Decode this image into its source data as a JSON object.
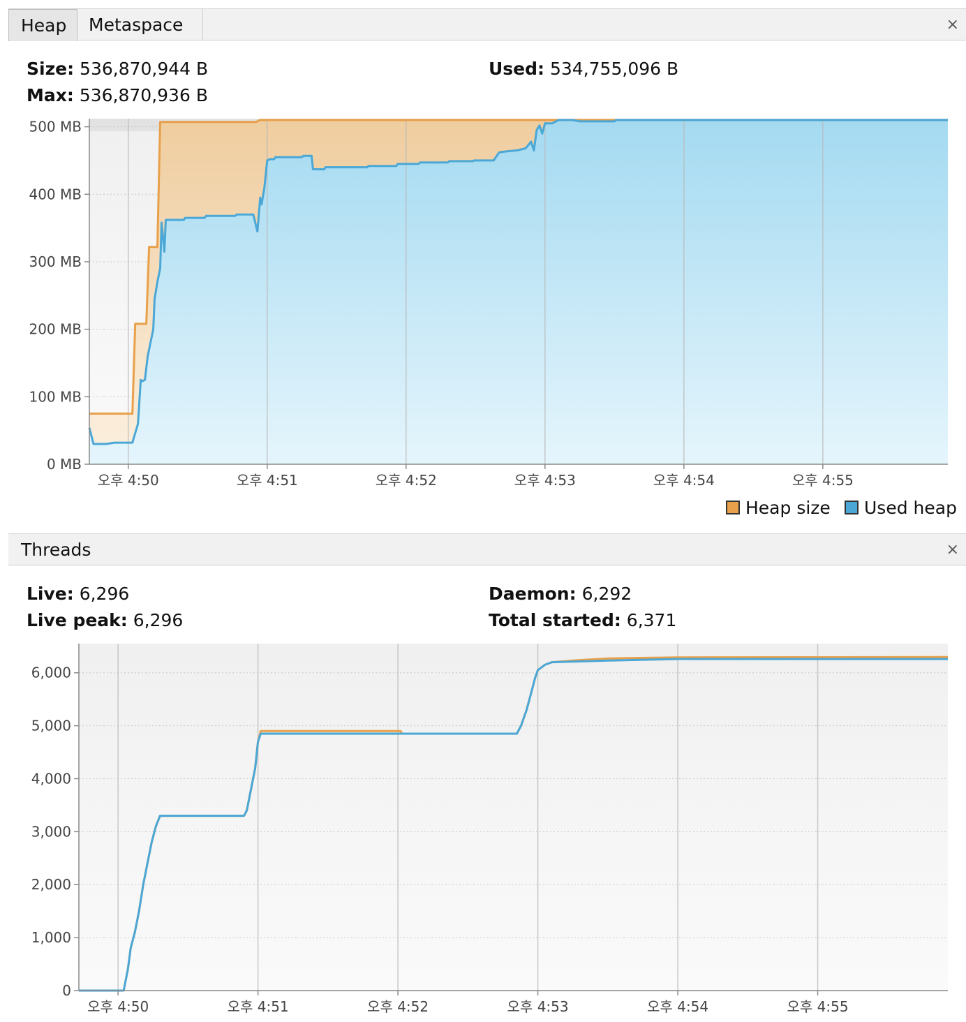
{
  "heap_panel": {
    "tabs": [
      {
        "label": "Heap"
      },
      {
        "label": "Metaspace"
      }
    ],
    "close_glyph": "×",
    "stats": {
      "size_label": "Size:",
      "size_value": "536,870,944 B",
      "max_label": "Max:",
      "max_value": "536,870,936 B",
      "used_label": "Used:",
      "used_value": "534,755,096 B"
    },
    "legend": [
      {
        "label": "Heap size",
        "color": "#e8a04a"
      },
      {
        "label": "Used heap",
        "color": "#4aa7d6"
      }
    ]
  },
  "threads_panel": {
    "title": "Threads",
    "close_glyph": "×",
    "stats": {
      "live_label": "Live:",
      "live_value": "6,296",
      "peak_label": "Live peak:",
      "peak_value": "6,296",
      "daemon_label": "Daemon:",
      "daemon_value": "6,292",
      "total_label": "Total started:",
      "total_value": "6,371"
    }
  },
  "chart_data": [
    {
      "type": "area",
      "x_unit": "minutes after 오후 4:50",
      "x_ticks": [
        {
          "x": 0,
          "label": "오후 4:50"
        },
        {
          "x": 1,
          "label": "오후 4:51"
        },
        {
          "x": 2,
          "label": "오후 4:52"
        },
        {
          "x": 3,
          "label": "오후 4:53"
        },
        {
          "x": 4,
          "label": "오후 4:54"
        },
        {
          "x": 5,
          "label": "오후 4:55"
        }
      ],
      "xlim": [
        -0.28,
        5.9
      ],
      "y_ticks": [
        {
          "y": 0,
          "label": "0 MB"
        },
        {
          "y": 100,
          "label": "100 MB"
        },
        {
          "y": 200,
          "label": "200 MB"
        },
        {
          "y": 300,
          "label": "300 MB"
        },
        {
          "y": 400,
          "label": "400 MB"
        },
        {
          "y": 500,
          "label": "500 MB"
        }
      ],
      "ylim": [
        0,
        512
      ],
      "series": [
        {
          "name": "Heap size",
          "color": "#e8a04a",
          "points": [
            [
              -0.28,
              75
            ],
            [
              0.03,
              75
            ],
            [
              0.05,
              208
            ],
            [
              0.13,
              208
            ],
            [
              0.15,
              322
            ],
            [
              0.21,
              322
            ],
            [
              0.23,
              507
            ],
            [
              0.92,
              507
            ],
            [
              0.95,
              510
            ],
            [
              5.9,
              510
            ]
          ]
        },
        {
          "name": "Used heap",
          "color": "#4aa7d6",
          "points": [
            [
              -0.28,
              54
            ],
            [
              -0.25,
              30
            ],
            [
              -0.16,
              30
            ],
            [
              -0.1,
              32
            ],
            [
              0.03,
              32
            ],
            [
              0.07,
              60
            ],
            [
              0.09,
              125
            ],
            [
              0.1,
              123
            ],
            [
              0.12,
              125
            ],
            [
              0.14,
              160
            ],
            [
              0.16,
              180
            ],
            [
              0.18,
              200
            ],
            [
              0.19,
              245
            ],
            [
              0.21,
              270
            ],
            [
              0.23,
              290
            ],
            [
              0.24,
              358
            ],
            [
              0.26,
              315
            ],
            [
              0.27,
              362
            ],
            [
              0.4,
              362
            ],
            [
              0.41,
              365
            ],
            [
              0.55,
              365
            ],
            [
              0.56,
              368
            ],
            [
              0.77,
              368
            ],
            [
              0.78,
              370
            ],
            [
              0.9,
              370
            ],
            [
              0.93,
              345
            ],
            [
              0.95,
              395
            ],
            [
              0.96,
              385
            ],
            [
              0.98,
              410
            ],
            [
              1.0,
              450
            ],
            [
              1.02,
              452
            ],
            [
              1.05,
              452
            ],
            [
              1.06,
              455
            ],
            [
              1.25,
              455
            ],
            [
              1.26,
              457
            ],
            [
              1.32,
              457
            ],
            [
              1.33,
              437
            ],
            [
              1.41,
              437
            ],
            [
              1.42,
              440
            ],
            [
              1.72,
              440
            ],
            [
              1.73,
              442
            ],
            [
              1.93,
              442
            ],
            [
              1.94,
              445
            ],
            [
              2.09,
              445
            ],
            [
              2.1,
              447
            ],
            [
              2.3,
              447
            ],
            [
              2.31,
              449
            ],
            [
              2.48,
              449
            ],
            [
              2.49,
              450
            ],
            [
              2.63,
              450
            ],
            [
              2.67,
              462
            ],
            [
              2.7,
              463
            ],
            [
              2.8,
              465
            ],
            [
              2.86,
              468
            ],
            [
              2.9,
              478
            ],
            [
              2.92,
              465
            ],
            [
              2.94,
              495
            ],
            [
              2.96,
              502
            ],
            [
              2.98,
              490
            ],
            [
              3.0,
              505
            ],
            [
              3.05,
              505
            ],
            [
              3.1,
              510
            ],
            [
              3.2,
              510
            ],
            [
              3.25,
              508
            ],
            [
              3.5,
              508
            ],
            [
              3.51,
              510
            ],
            [
              5.9,
              510
            ]
          ]
        }
      ]
    },
    {
      "type": "line",
      "x_unit": "minutes after 오후 4:50",
      "x_ticks": [
        {
          "x": 0,
          "label": "오후 4:50"
        },
        {
          "x": 1,
          "label": "오후 4:51"
        },
        {
          "x": 2,
          "label": "오후 4:52"
        },
        {
          "x": 3,
          "label": "오후 4:53"
        },
        {
          "x": 4,
          "label": "오후 4:54"
        },
        {
          "x": 5,
          "label": "오후 4:55"
        }
      ],
      "xlim": [
        -0.28,
        5.93
      ],
      "y_ticks": [
        {
          "y": 0,
          "label": "0"
        },
        {
          "y": 1000,
          "label": "1,000"
        },
        {
          "y": 2000,
          "label": "2,000"
        },
        {
          "y": 3000,
          "label": "3,000"
        },
        {
          "y": 4000,
          "label": "4,000"
        },
        {
          "y": 5000,
          "label": "5,000"
        },
        {
          "y": 6000,
          "label": "6,000"
        }
      ],
      "ylim": [
        0,
        6550
      ],
      "series": [
        {
          "color": "#e8a04a",
          "points": [
            [
              -0.28,
              0
            ],
            [
              0.04,
              0
            ],
            [
              0.07,
              400
            ],
            [
              0.09,
              800
            ],
            [
              0.12,
              1100
            ],
            [
              0.15,
              1500
            ],
            [
              0.18,
              2000
            ],
            [
              0.21,
              2400
            ],
            [
              0.24,
              2800
            ],
            [
              0.27,
              3100
            ],
            [
              0.3,
              3300
            ],
            [
              0.9,
              3300
            ],
            [
              0.92,
              3400
            ],
            [
              0.95,
              3800
            ],
            [
              0.98,
              4200
            ],
            [
              1.0,
              4700
            ],
            [
              1.02,
              4900
            ],
            [
              2.02,
              4900
            ],
            [
              2.03,
              4850
            ],
            [
              2.85,
              4850
            ],
            [
              2.88,
              5000
            ],
            [
              2.92,
              5300
            ],
            [
              2.95,
              5600
            ],
            [
              2.98,
              5900
            ],
            [
              3.0,
              6050
            ],
            [
              3.05,
              6150
            ],
            [
              3.1,
              6200
            ],
            [
              3.25,
              6230
            ],
            [
              3.5,
              6270
            ],
            [
              4.0,
              6290
            ],
            [
              5.93,
              6296
            ]
          ]
        },
        {
          "color": "#4aa7d6",
          "points": [
            [
              -0.28,
              0
            ],
            [
              0.04,
              0
            ],
            [
              0.07,
              400
            ],
            [
              0.09,
              800
            ],
            [
              0.12,
              1100
            ],
            [
              0.15,
              1500
            ],
            [
              0.18,
              2000
            ],
            [
              0.21,
              2400
            ],
            [
              0.24,
              2800
            ],
            [
              0.27,
              3100
            ],
            [
              0.3,
              3300
            ],
            [
              0.9,
              3300
            ],
            [
              0.92,
              3400
            ],
            [
              0.95,
              3800
            ],
            [
              0.98,
              4200
            ],
            [
              1.0,
              4700
            ],
            [
              1.02,
              4850
            ],
            [
              2.85,
              4850
            ],
            [
              2.88,
              5000
            ],
            [
              2.92,
              5300
            ],
            [
              2.95,
              5600
            ],
            [
              2.98,
              5900
            ],
            [
              3.0,
              6050
            ],
            [
              3.05,
              6150
            ],
            [
              3.1,
              6200
            ],
            [
              3.25,
              6210
            ],
            [
              3.5,
              6230
            ],
            [
              4.0,
              6260
            ],
            [
              5.93,
              6260
            ]
          ]
        }
      ]
    }
  ]
}
